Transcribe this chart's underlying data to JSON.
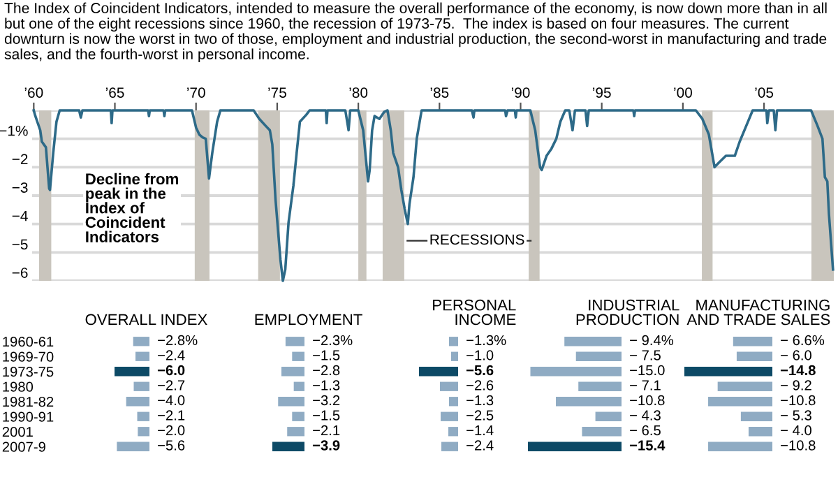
{
  "chart_data": [
    {
      "type": "line",
      "title": "The Index of Coincident Indicators, intended to measure the overall performance of the economy, is now down more than in all but one of the eight recessions since 1960, the recession of 1973-75.  The index is based on four measures. The current downturn is now the worst in two of those, employment and industrial production, the second-worst in manufacturing and trade sales, and the fourth-worst in personal income.",
      "series": [
        {
          "color": "#2d6a88",
          "x": [
            1960.0,
            1960.1,
            1960.4,
            1960.5,
            1960.75,
            1960.95,
            1961.0,
            1961.2,
            1961.4,
            1961.6,
            1962.8,
            1962.9,
            1963.0,
            1964.75,
            1964.8,
            1964.85,
            1967.05,
            1967.1,
            1967.15,
            1968.0,
            1968.05,
            1968.1,
            1969.75,
            1970.0,
            1970.2,
            1970.4,
            1970.6,
            1970.8,
            1971.0,
            1971.3,
            1971.5,
            1973.55,
            1973.9,
            1974.3,
            1974.55,
            1974.7,
            1974.9,
            1975.2,
            1975.35,
            1975.5,
            1975.7,
            1976.0,
            1976.2,
            1976.4,
            1976.8,
            1977.0,
            1978.0,
            1978.05,
            1978.1,
            1979.2,
            1979.4,
            1979.5,
            1980.0,
            1980.3,
            1980.6,
            1980.7,
            1980.85,
            1981.0,
            1981.3,
            1981.6,
            1981.8,
            1982.0,
            1982.15,
            1982.45,
            1982.65,
            1982.85,
            1983.05,
            1983.15,
            1983.4,
            1983.6,
            1983.9,
            1987.0,
            1987.1,
            1987.15,
            1989.05,
            1989.1,
            1989.2,
            1989.65,
            1989.7,
            1989.75,
            1990.6,
            1990.9,
            1991.2,
            1991.3,
            1991.6,
            1991.9,
            1992.2,
            1992.45,
            1992.75,
            1993.0,
            1993.2,
            1993.35,
            1994.0,
            1994.1,
            1994.2,
            1996.95,
            1997.0,
            1997.05,
            2000.8,
            2001.2,
            2001.6,
            2001.95,
            2002.2,
            2002.65,
            2003.2,
            2003.5,
            2003.9,
            2004.3,
            2005.15,
            2005.2,
            2005.3,
            2005.6,
            2005.7,
            2005.8,
            2007.9,
            2008.3,
            2008.6,
            2008.75,
            2008.9,
            2009.0,
            2009.25
          ],
          "values": [
            0,
            -0.2,
            -0.7,
            -1.1,
            -1.3,
            -2.75,
            -2.8,
            -1.5,
            -0.4,
            0,
            0,
            -0.25,
            0,
            0,
            -0.45,
            0,
            0,
            -0.2,
            0,
            0,
            -0.2,
            0,
            0,
            -0.6,
            -0.85,
            -0.95,
            -1.0,
            -2.4,
            -1.5,
            -0.4,
            0,
            0,
            -0.3,
            -0.55,
            -0.7,
            -1.2,
            -3.15,
            -5.25,
            -6.0,
            -5.6,
            -3.95,
            -2.65,
            -1.5,
            -0.4,
            -0.15,
            0,
            0,
            -0.45,
            0,
            0,
            -0.7,
            0,
            0,
            -0.7,
            -2.5,
            -2.1,
            -0.7,
            -0.2,
            -0.3,
            -0.05,
            0,
            -0.7,
            -1.5,
            -2.0,
            -2.8,
            -3.45,
            -4.0,
            -3.3,
            -2.35,
            -1.0,
            0,
            0,
            -0.25,
            0,
            0,
            -0.2,
            0,
            0,
            -0.25,
            0,
            0,
            -0.7,
            -2.0,
            -2.1,
            -1.6,
            -1.35,
            -1.0,
            -0.4,
            0,
            0,
            -0.7,
            0,
            0,
            -0.55,
            0,
            0,
            -0.2,
            0,
            0,
            -0.3,
            -0.85,
            -2.0,
            -1.85,
            -1.6,
            -1.6,
            -1.1,
            -0.55,
            0,
            0,
            -0.45,
            0,
            0,
            -0.7,
            0,
            0,
            -0.55,
            -1.0,
            -2.35,
            -2.5,
            -3.65,
            -5.6
          ]
        }
      ],
      "xlim": [
        1959.9,
        2009.3
      ],
      "xticks": [
        {
          "value": 1960,
          "label": "’60"
        },
        {
          "value": 1965,
          "label": "’65"
        },
        {
          "value": 1970,
          "label": "’70"
        },
        {
          "value": 1975,
          "label": "’75"
        },
        {
          "value": 1980,
          "label": "’80"
        },
        {
          "value": 1985,
          "label": "’85"
        },
        {
          "value": 1990,
          "label": "’90"
        },
        {
          "value": 1995,
          "label": "’95"
        },
        {
          "value": 2000,
          "label": "’00"
        },
        {
          "value": 2005,
          "label": "’05"
        }
      ],
      "ylim": [
        -6,
        0
      ],
      "yticks": [
        {
          "value": 0,
          "label": null
        },
        {
          "value": -1,
          "label": "−1%"
        },
        {
          "value": -2,
          "label": "−2"
        },
        {
          "value": -3,
          "label": "−3"
        },
        {
          "value": -4,
          "label": "−4"
        },
        {
          "value": -5,
          "label": "−5"
        },
        {
          "value": -6,
          "label": "−6"
        }
      ],
      "grid": "y",
      "bands": [
        {
          "axis": "x",
          "from": 1960.33,
          "to": 1961.08,
          "color": "#c9c5bd"
        },
        {
          "axis": "x",
          "from": 1969.92,
          "to": 1970.83,
          "color": "#c9c5bd"
        },
        {
          "axis": "x",
          "from": 1973.83,
          "to": 1975.17,
          "color": "#c9c5bd"
        },
        {
          "axis": "x",
          "from": 1980.0,
          "to": 1980.5,
          "color": "#c9c5bd"
        },
        {
          "axis": "x",
          "from": 1981.5,
          "to": 1982.83,
          "color": "#c9c5bd"
        },
        {
          "axis": "x",
          "from": 1990.5,
          "to": 1991.17,
          "color": "#c9c5bd"
        },
        {
          "axis": "x",
          "from": 2001.17,
          "to": 2001.83,
          "color": "#c9c5bd"
        },
        {
          "axis": "x",
          "from": 2007.92,
          "to": 2009.3,
          "color": "#c9c5bd"
        }
      ],
      "annotations": [
        "Decline from\npeak in the\nIndex of\nCoincident\nIndicators",
        "RECESSIONS"
      ]
    },
    {
      "type": "bar",
      "orientation": "horizontal",
      "title": "OVERALL INDEX",
      "tick_labels": "y",
      "categories": [
        "1960-61",
        "1969-70",
        "1973-75",
        "1980",
        "1981-82",
        "1990-91",
        "2001",
        "2007-9"
      ],
      "values": [
        -2.8,
        -2.4,
        -6.0,
        -2.7,
        -4.0,
        -2.1,
        -2.0,
        -5.6
      ],
      "colors": [
        "#8fabc3",
        "#8fabc3",
        "#0d4a66",
        "#8fabc3",
        "#8fabc3",
        "#8fabc3",
        "#8fabc3",
        "#8fabc3"
      ],
      "value_labels": [
        "−2.8%",
        "−2.4",
        "−6.0",
        "−2.7",
        "−4.0",
        "−2.1",
        "−2.0",
        "−5.6"
      ]
    },
    {
      "type": "bar",
      "orientation": "horizontal",
      "title": "EMPLOYMENT",
      "tick_labels": false,
      "categories": [
        "1960-61",
        "1969-70",
        "1973-75",
        "1980",
        "1981-82",
        "1990-91",
        "2001",
        "2007-9"
      ],
      "values": [
        -2.3,
        -1.5,
        -2.8,
        -1.3,
        -3.2,
        -1.5,
        -2.1,
        -3.9
      ],
      "colors": [
        "#8fabc3",
        "#8fabc3",
        "#8fabc3",
        "#8fabc3",
        "#8fabc3",
        "#8fabc3",
        "#8fabc3",
        "#0d4a66"
      ],
      "value_labels": [
        "−2.3%",
        "−1.5",
        "−2.8",
        "−1.3",
        "−3.2",
        "−1.5",
        "−2.1",
        "−3.9"
      ]
    },
    {
      "type": "bar",
      "orientation": "horizontal",
      "title": "PERSONAL\nINCOME",
      "tick_labels": false,
      "categories": [
        "1960-61",
        "1969-70",
        "1973-75",
        "1980",
        "1981-82",
        "1990-91",
        "2001",
        "2007-9"
      ],
      "values": [
        -1.3,
        -1.0,
        -5.6,
        -2.6,
        -1.3,
        -2.5,
        -1.4,
        -2.4
      ],
      "colors": [
        "#8fabc3",
        "#8fabc3",
        "#0d4a66",
        "#8fabc3",
        "#8fabc3",
        "#8fabc3",
        "#8fabc3",
        "#8fabc3"
      ],
      "value_labels": [
        "−1.3%",
        "−1.0",
        "−5.6",
        "−2.6",
        "−1.3",
        "−2.5",
        "−1.4",
        "−2.4"
      ]
    },
    {
      "type": "bar",
      "orientation": "horizontal",
      "title": "INDUSTRIAL\nPRODUCTION",
      "tick_labels": false,
      "categories": [
        "1960-61",
        "1969-70",
        "1973-75",
        "1980",
        "1981-82",
        "1990-91",
        "2001",
        "2007-9"
      ],
      "values": [
        -9.4,
        -7.5,
        -15.0,
        -7.1,
        -10.8,
        -4.3,
        -6.5,
        -15.4
      ],
      "colors": [
        "#8fabc3",
        "#8fabc3",
        "#8fabc3",
        "#8fabc3",
        "#8fabc3",
        "#8fabc3",
        "#8fabc3",
        "#0d4a66"
      ],
      "value_labels": [
        "− 9.4%",
        "− 7.5",
        "−15.0",
        "− 7.1",
        "−10.8",
        "− 4.3",
        "− 6.5",
        "−15.4"
      ]
    },
    {
      "type": "bar",
      "orientation": "horizontal",
      "title": "MANUFACTURING\nAND TRADE SALES",
      "tick_labels": false,
      "categories": [
        "1960-61",
        "1969-70",
        "1973-75",
        "1980",
        "1981-82",
        "1990-91",
        "2001",
        "2007-9"
      ],
      "values": [
        -6.6,
        -6.0,
        -14.8,
        -9.2,
        -10.8,
        -5.3,
        -4.0,
        -10.8
      ],
      "colors": [
        "#8fabc3",
        "#8fabc3",
        "#0d4a66",
        "#8fabc3",
        "#8fabc3",
        "#8fabc3",
        "#8fabc3",
        "#8fabc3"
      ],
      "value_labels": [
        "− 6.6%",
        "− 6.0",
        "−14.8",
        "− 9.2",
        "−10.8",
        "− 5.3",
        "− 4.0",
        "−10.8"
      ]
    }
  ]
}
